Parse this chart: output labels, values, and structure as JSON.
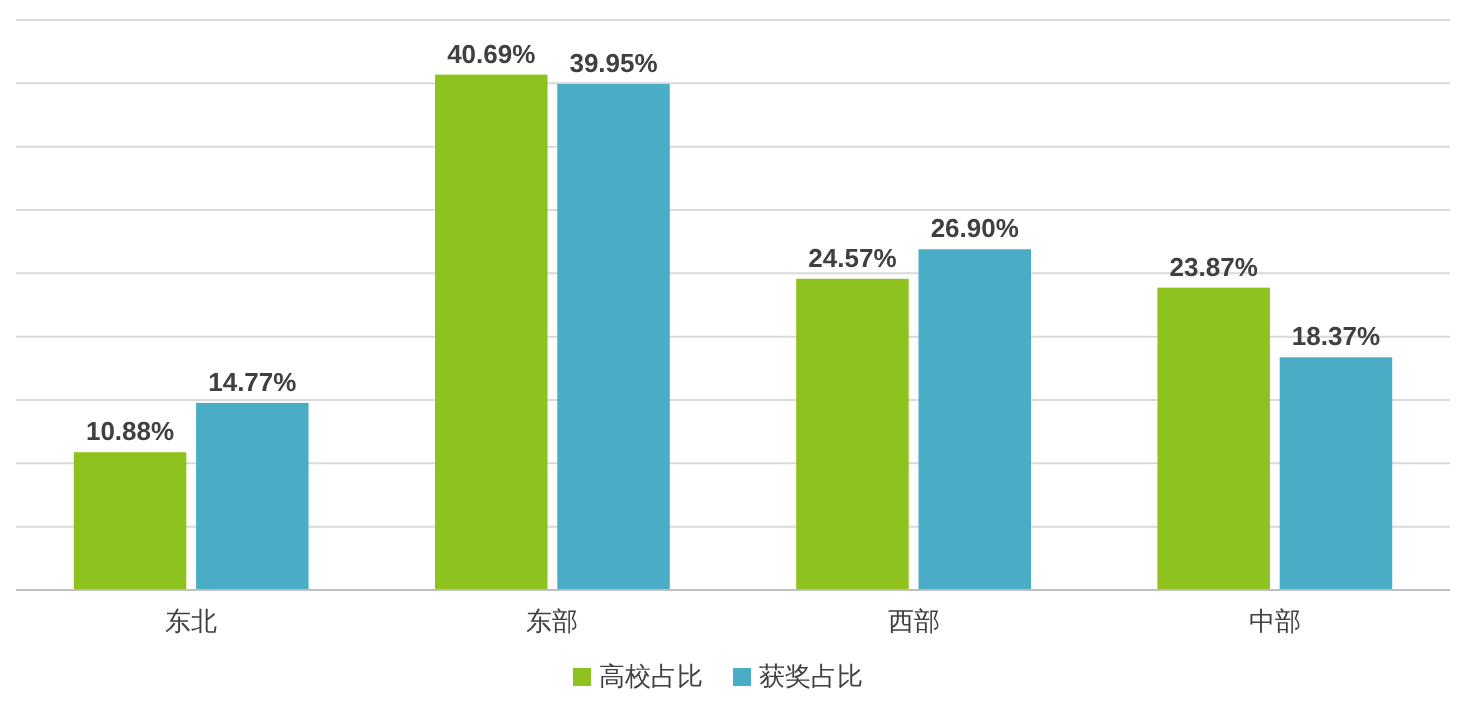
{
  "chart_data": {
    "type": "bar",
    "categories": [
      "东北",
      "东部",
      "西部",
      "中部"
    ],
    "series": [
      {
        "name": "高校占比",
        "color": "#8dc21f",
        "values": [
          10.88,
          40.69,
          24.57,
          23.87
        ],
        "value_labels": [
          "10.88%",
          "40.69%",
          "24.57%",
          "23.87%"
        ]
      },
      {
        "name": "获奖占比",
        "color": "#4bacc6",
        "values": [
          14.77,
          39.95,
          26.9,
          18.37
        ],
        "value_labels": [
          "14.77%",
          "39.95%",
          "26.90%",
          "18.37%"
        ]
      }
    ],
    "ylim": [
      0,
      45
    ],
    "yticks": [
      {
        "value": 0,
        "label": null
      },
      {
        "value": 5,
        "label": null
      },
      {
        "value": 10,
        "label": null
      },
      {
        "value": 15,
        "label": null
      },
      {
        "value": 20,
        "label": null
      },
      {
        "value": 25,
        "label": null
      },
      {
        "value": 30,
        "label": null
      },
      {
        "value": 35,
        "label": null
      },
      {
        "value": 40,
        "label": null
      },
      {
        "value": 45,
        "label": null
      }
    ],
    "grid": "y",
    "legend": "bottom",
    "tick_labels": "x"
  }
}
